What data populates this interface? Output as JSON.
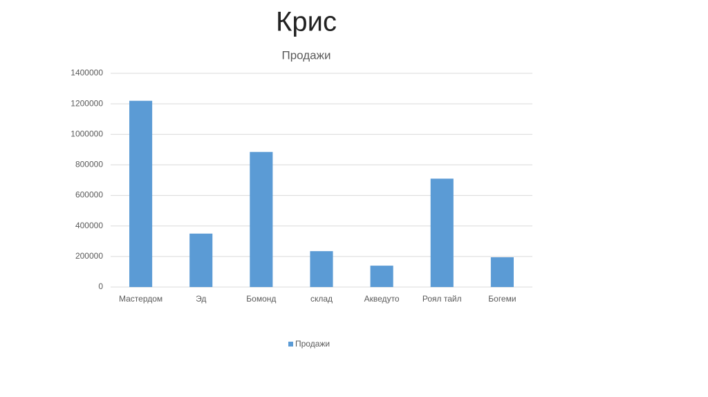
{
  "slide_title": "Крис",
  "chart_data": {
    "type": "bar",
    "title": "Продажи",
    "categories": [
      "Мастердом",
      "Эд",
      "Бомонд",
      "склад",
      "Акведуто",
      "Роял тайл",
      "Богеми"
    ],
    "series": [
      {
        "name": "Продажи",
        "color": "#5b9bd5",
        "values": [
          1220000,
          350000,
          885000,
          235000,
          140000,
          710000,
          195000
        ]
      }
    ],
    "ylim": [
      0,
      1400000
    ],
    "yticks": [
      0,
      200000,
      400000,
      600000,
      800000,
      1000000,
      1200000,
      1400000
    ],
    "grid": true,
    "legend": "bottom"
  }
}
